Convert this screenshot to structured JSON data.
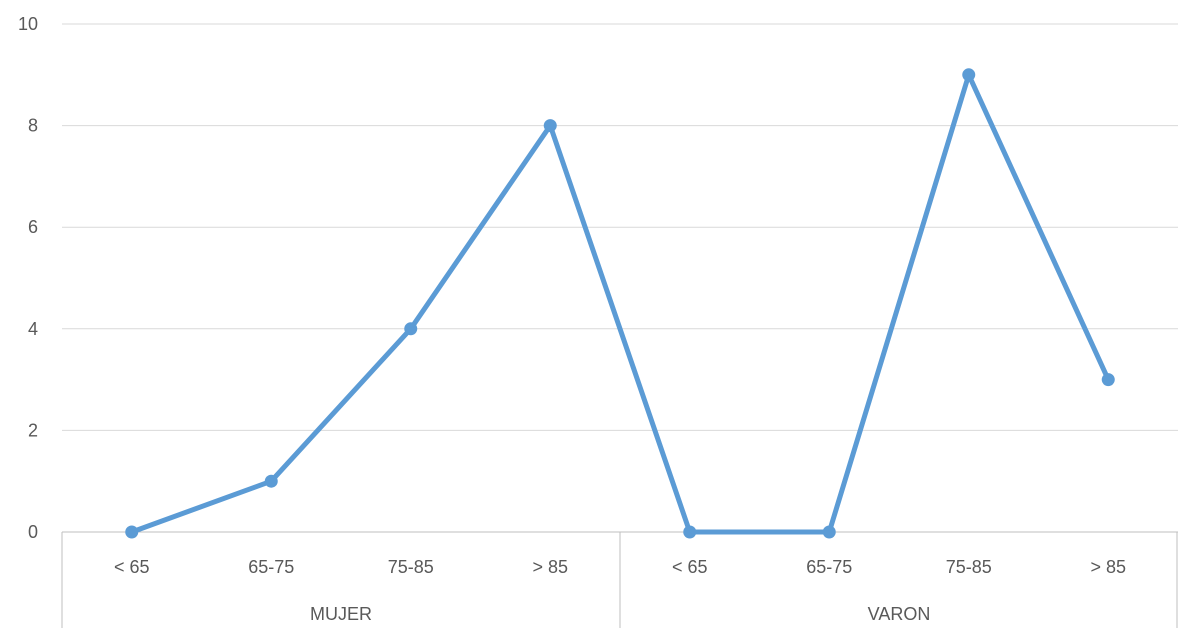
{
  "chart_data": {
    "type": "line",
    "groups": [
      {
        "label": "MUJER",
        "categories": [
          "< 65",
          "65-75",
          "75-85",
          "> 85"
        ]
      },
      {
        "label": "VARON",
        "categories": [
          "< 65",
          "65-75",
          "75-85",
          "> 85"
        ]
      }
    ],
    "series": [
      {
        "values": [
          0,
          1,
          4,
          8,
          0,
          0,
          9,
          3
        ],
        "color": "#5b9bd5"
      }
    ],
    "ylim": [
      0,
      10
    ],
    "yticks": [
      "0",
      "2",
      "4",
      "6",
      "8",
      "10"
    ],
    "grid": true,
    "legend": "none"
  }
}
